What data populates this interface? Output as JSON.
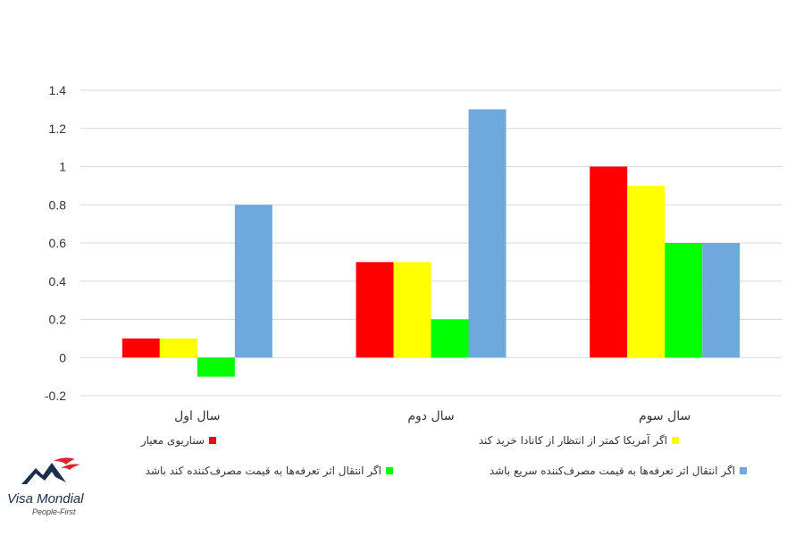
{
  "chart_data": {
    "type": "bar",
    "categories": [
      "سال اول",
      "سال دوم",
      "سال سوم"
    ],
    "series": [
      {
        "name": "سناریوی معیار",
        "color": "#ff0000",
        "values": [
          0.1,
          0.5,
          1.0
        ]
      },
      {
        "name": "اگر آمریکا کمتر از انتظار از کانادا خرید کند",
        "color": "#ffff00",
        "values": [
          0.1,
          0.5,
          0.9
        ]
      },
      {
        "name": "اگر انتقال اثر تعرفه‌ها به قیمت مصرف‌کننده کند باشد",
        "color": "#00ff00",
        "values": [
          -0.1,
          0.2,
          0.6
        ]
      },
      {
        "name": "اگر انتقال اثر تعرفه‌ها به قیمت مصرف‌کننده سریع باشد",
        "color": "#6fa8dc",
        "values": [
          0.8,
          1.3,
          0.6
        ]
      }
    ],
    "ylim": [
      -0.2,
      1.4
    ],
    "yticks": [
      -0.2,
      0,
      0.2,
      0.4,
      0.6,
      0.8,
      1,
      1.2,
      1.4
    ],
    "ytick_labels": [
      "-0.2",
      "0",
      "0.2",
      "0.4",
      "0.6",
      "0.8",
      "1",
      "1.2",
      "1.4"
    ],
    "grid": true,
    "legend_position": "bottom",
    "title": "",
    "xlabel": "",
    "ylabel": ""
  },
  "logo": {
    "name": "Visa Mondial",
    "tagline": "People-First",
    "colors": {
      "mountain": "#1b2f4a",
      "accent": "#d9262c"
    }
  }
}
